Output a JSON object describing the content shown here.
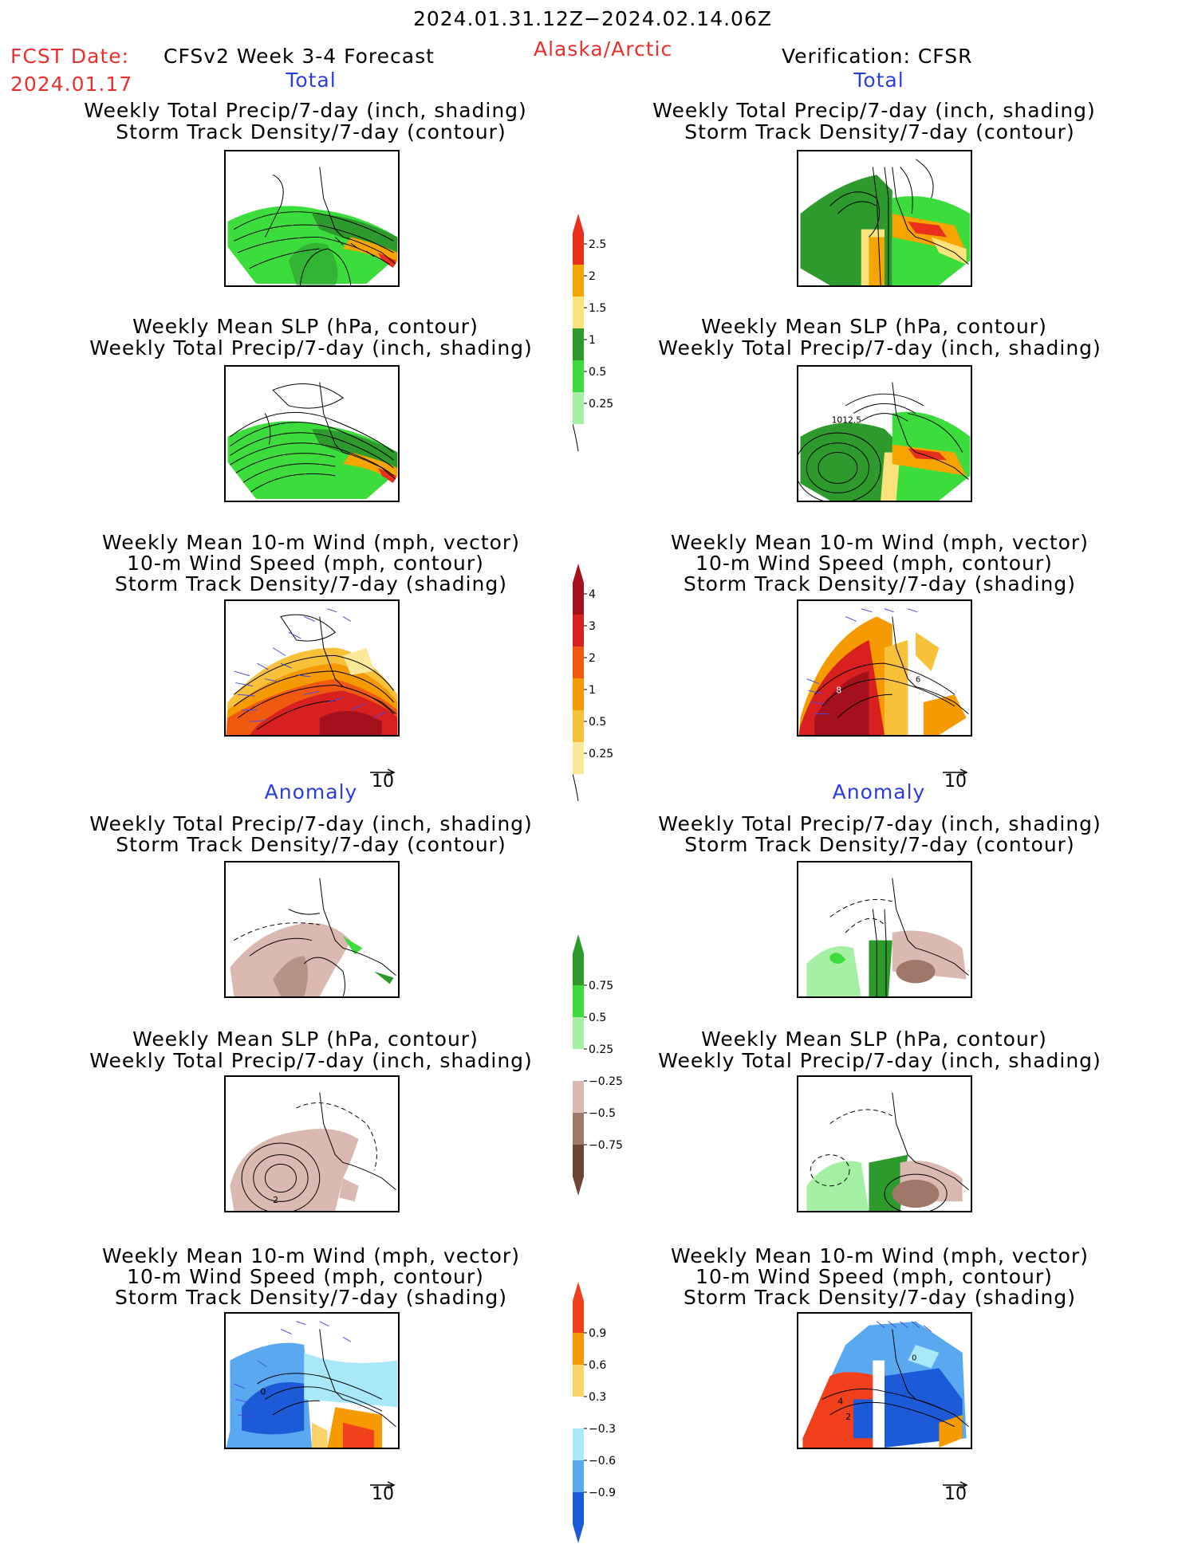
{
  "header": {
    "date_range": "2024.01.31.12Z−2024.02.14.06Z",
    "fcst_label": "FCST Date:",
    "fcst_date": "2024.01.17",
    "product": "CFSv2 Week 3-4 Forecast",
    "region": "Alaska/Arctic",
    "verification": "Verification: CFSR"
  },
  "sections": {
    "total_left": "Total",
    "total_right": "Total",
    "anomaly_left": "Anomaly",
    "anomaly_right": "Anomaly"
  },
  "titles": {
    "precip_storm_l1": "Weekly Total Precip/7-day (inch, shading)",
    "precip_storm_l2": "Storm Track Density/7-day (contour)",
    "slp_l1": "Weekly Mean SLP (hPa, contour)",
    "slp_l2": "Weekly Total Precip/7-day (inch, shading)",
    "wind_l1": "Weekly Mean 10-m Wind (mph, vector)",
    "wind_l2": "10-m Wind Speed (mph, contour)",
    "wind_l3": "Storm Track Density/7-day (shading)"
  },
  "vector_ref": "10",
  "map_labels": {
    "slp_total_right": "1012.5",
    "wind_total_right_a": "8",
    "wind_total_right_b": "6",
    "slp_anom_left": "2",
    "wind_anom_left": "0",
    "wind_anom_right_a": "4",
    "wind_anom_right_b": "2",
    "wind_anom_right_c": "0"
  },
  "colorbars": {
    "precip_total": {
      "labels": [
        "2.5",
        "2",
        "1.5",
        "1",
        "0.5",
        "0.25"
      ],
      "colors": [
        "#e8301c",
        "#f5a400",
        "#fce27a",
        "#2e9a2e",
        "#3ddc3d",
        "#a6f0a6"
      ]
    },
    "storm_total": {
      "labels": [
        "4",
        "3",
        "2",
        "1",
        "0.5",
        "0.25"
      ],
      "colors": [
        "#a4111c",
        "#d82020",
        "#f05a10",
        "#f59a00",
        "#f7c23a",
        "#fbe99a"
      ]
    },
    "precip_anom": {
      "labels": [
        "0.75",
        "0.5",
        "0.25",
        "−0.25",
        "−0.5",
        "−0.75"
      ],
      "colors": [
        "#2e9a2e",
        "#3ddc3d",
        "#a6f0a6",
        "#ffffff",
        "#d9b9b0",
        "#a0786a",
        "#6b4535"
      ]
    },
    "storm_anom": {
      "labels": [
        "0.9",
        "0.6",
        "0.3",
        "−0.3",
        "−0.6",
        "−0.9"
      ],
      "colors": [
        "#f0401c",
        "#f59a00",
        "#fcd36a",
        "#ffffff",
        "#a8e8f8",
        "#5aa8f0",
        "#1c5ad8"
      ]
    }
  }
}
